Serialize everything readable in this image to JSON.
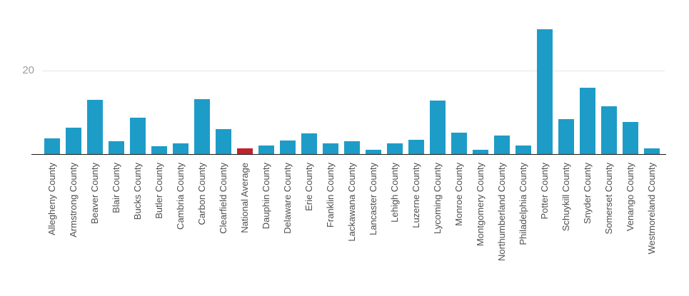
{
  "chart_data": {
    "type": "bar",
    "title": "",
    "categories": [
      "Allegheny County",
      "Armstrong County",
      "Beaver County",
      "Blair County",
      "Bucks County",
      "Butler County",
      "Cambria County",
      "Carbon County",
      "Clearfield County",
      "National Average",
      "Dauphin County",
      "Delaware County",
      "Erie County",
      "Franklin County",
      "Lackawana County",
      "Lancaster County",
      "Lehigh County",
      "Luzerne County",
      "Lycoming County",
      "Monroe County",
      "Montgomery County",
      "Northumberland County",
      "Philadelphia County",
      "Potter County",
      "Schuykill County",
      "Snyder County",
      "Somerset County",
      "Venango County",
      "Westmoreland County"
    ],
    "values": [
      3.7,
      6.4,
      13.0,
      3.0,
      8.7,
      1.9,
      2.6,
      13.1,
      5.9,
      1.4,
      2.0,
      3.3,
      5.0,
      2.6,
      3.1,
      1.1,
      2.5,
      3.5,
      12.8,
      5.1,
      1.1,
      4.4,
      2.0,
      29.9,
      8.4,
      15.9,
      11.4,
      7.7,
      1.3
    ],
    "highlight": {
      "category": "National Average",
      "index": 9
    },
    "y_axis": {
      "tick_label": "20",
      "tick_value": 20,
      "ylim": [
        0,
        31
      ],
      "gridlines": [
        20
      ]
    },
    "xlabel": "",
    "ylabel": "",
    "legend": "none",
    "grid": "single horizontal gridline at 20",
    "colors": {
      "bar": "#1e9cc8",
      "highlight": "#c2222b",
      "gridline": "#e6e6e6",
      "axis_line": "#1a1a1a",
      "tick_text": "#9e9e9e",
      "label_text": "#4f4f4f",
      "background": "#ffffff"
    }
  }
}
